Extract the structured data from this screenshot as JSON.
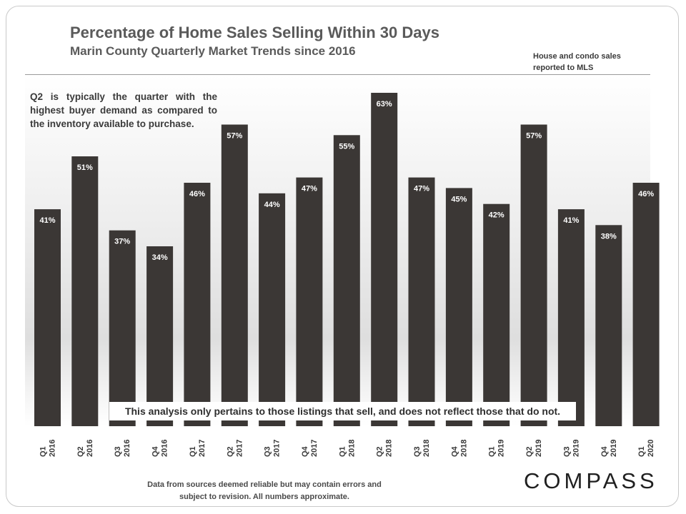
{
  "title": "Percentage of Home Sales Selling Within 30 Days",
  "subtitle": "Marin County Quarterly Market Trends since 2016",
  "source_note": "House and condo sales reported to MLS",
  "annotation": "Q2 is typically the quarter with the highest buyer demand as compared to the inventory available to purchase.",
  "disclaimer": "This analysis only pertains to those listings that sell, and does not reflect those that do not.",
  "footer": "Data from sources deemed reliable but may contain errors and subject to revision. All numbers approximate.",
  "logo": "COMPASS",
  "colors": {
    "bar": "#3b3735",
    "bar_label": "#ffffff",
    "tick": "#3a3a3a"
  },
  "chart_data": {
    "type": "bar",
    "categories": [
      [
        "Q1",
        "2016"
      ],
      [
        "Q2",
        "2016"
      ],
      [
        "Q3",
        "2016"
      ],
      [
        "Q4",
        "2016"
      ],
      [
        "Q1",
        "2017"
      ],
      [
        "Q2",
        "2017"
      ],
      [
        "Q3",
        "2017"
      ],
      [
        "Q4",
        "2017"
      ],
      [
        "Q1",
        "2018"
      ],
      [
        "Q2",
        "2018"
      ],
      [
        "Q3",
        "2018"
      ],
      [
        "Q4",
        "2018"
      ],
      [
        "Q1",
        "2019"
      ],
      [
        "Q2",
        "2019"
      ],
      [
        "Q3",
        "2019"
      ],
      [
        "Q4",
        "2019"
      ],
      [
        "Q1",
        "2020"
      ]
    ],
    "values": [
      41,
      51,
      37,
      34,
      46,
      57,
      44,
      47,
      55,
      63,
      47,
      45,
      42,
      57,
      41,
      38,
      46
    ],
    "value_labels": [
      "41%",
      "51%",
      "37%",
      "34%",
      "46%",
      "57%",
      "44%",
      "47%",
      "55%",
      "63%",
      "47%",
      "45%",
      "42%",
      "57%",
      "41%",
      "38%",
      "46%"
    ],
    "ylim": [
      0,
      66
    ],
    "grid": false,
    "legend": false
  }
}
